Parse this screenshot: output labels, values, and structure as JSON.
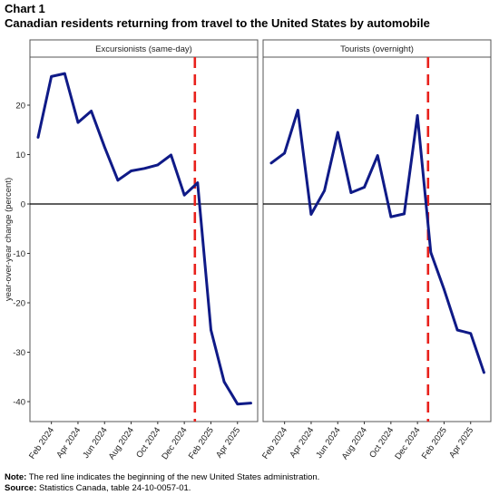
{
  "header": {
    "chart_label": "Chart 1",
    "title": "Canadian residents returning from travel to the United States by automobile"
  },
  "footer": {
    "note_label": "Note:",
    "note_text": "The red line indicates the beginning of the new United States administration.",
    "source_label": "Source:",
    "source_text": "Statistics Canada, table 24-10-0057-01."
  },
  "colors": {
    "series": "#0f1a87",
    "marker": "#e8201b",
    "zero_line": "#000000",
    "panel_border": "#555555"
  },
  "chart_data": [
    {
      "type": "line",
      "title": "Excursionists (same-day)",
      "ylabel": "year-over-year change (percent)",
      "xlabel": "",
      "x": [
        "Jan 2024",
        "Feb 2024",
        "Mar 2024",
        "Apr 2024",
        "May 2024",
        "Jun 2024",
        "Jul 2024",
        "Aug 2024",
        "Sep 2024",
        "Oct 2024",
        "Nov 2024",
        "Dec 2024",
        "Jan 2025",
        "Feb 2025",
        "Mar 2025",
        "Apr 2025",
        "May 2025"
      ],
      "xtick_labels": [
        "Feb 2024",
        "Apr 2024",
        "Jun 2024",
        "Aug 2024",
        "Oct 2024",
        "Dec 2024",
        "Feb 2025",
        "Apr 2025"
      ],
      "values": [
        13.5,
        25.8,
        26.4,
        16.5,
        18.8,
        11.5,
        4.8,
        6.7,
        7.2,
        7.9,
        9.9,
        1.8,
        4.3,
        -25.5,
        -36.0,
        -40.5,
        -40.3
      ],
      "ylim": [
        -44,
        31
      ],
      "yticks": [
        -40,
        -30,
        -20,
        -10,
        0,
        10,
        20
      ],
      "ytick_labels": [
        "-40",
        "-30",
        "-20",
        "-10",
        "0",
        "10",
        "20"
      ],
      "reference_line_after": "Jan 2025",
      "grid": false
    },
    {
      "type": "line",
      "title": "Tourists (overnight)",
      "xlabel": "",
      "x": [
        "Jan 2024",
        "Feb 2024",
        "Mar 2024",
        "Apr 2024",
        "May 2024",
        "Jun 2024",
        "Jul 2024",
        "Aug 2024",
        "Sep 2024",
        "Oct 2024",
        "Nov 2024",
        "Dec 2024",
        "Jan 2025",
        "Feb 2025",
        "Mar 2025",
        "Apr 2025",
        "May 2025"
      ],
      "xtick_labels": [
        "Feb 2024",
        "Apr 2024",
        "Jun 2024",
        "Aug 2024",
        "Oct 2024",
        "Dec 2024",
        "Feb 2025",
        "Apr 2025"
      ],
      "values": [
        8.3,
        10.3,
        19.0,
        -2.1,
        2.7,
        14.5,
        2.3,
        3.4,
        9.8,
        -2.6,
        -2.0,
        17.9,
        -9.8,
        -17.3,
        -25.5,
        -26.2,
        -34.1
      ],
      "ylim": [
        -44,
        31
      ],
      "reference_line_after": "Jan 2025",
      "grid": false
    }
  ]
}
